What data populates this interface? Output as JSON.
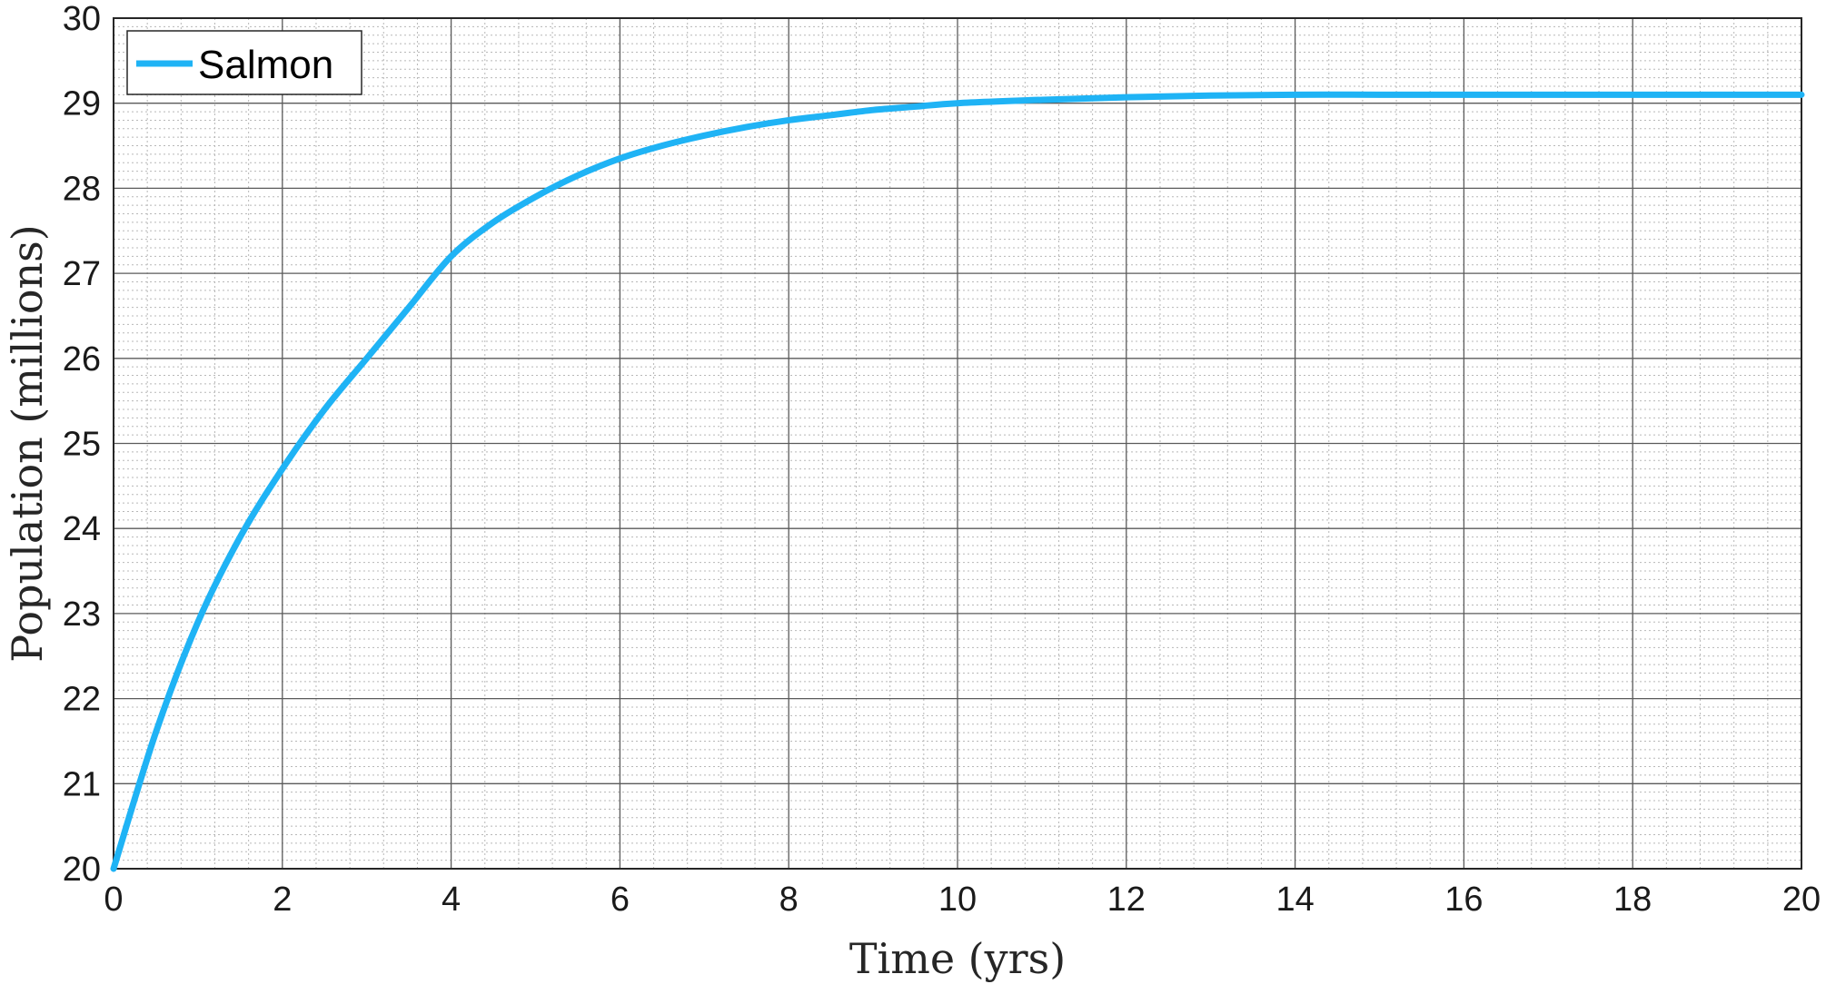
{
  "chart_data": {
    "type": "line",
    "xlabel": "Time (yrs)",
    "ylabel": "Population (millions)",
    "xlim": [
      0,
      20
    ],
    "ylim": [
      20,
      30
    ],
    "xticks": [
      "0",
      "2",
      "4",
      "6",
      "8",
      "10",
      "12",
      "14",
      "16",
      "18",
      "20"
    ],
    "yticks": [
      "20",
      "21",
      "22",
      "23",
      "24",
      "25",
      "26",
      "27",
      "28",
      "29",
      "30"
    ],
    "grid": true,
    "minor_grid": true,
    "legend_position": "top-left",
    "series": [
      {
        "name": "Salmon",
        "color": "#1fb3f5",
        "x": [
          0,
          0.5,
          1,
          1.5,
          2,
          2.5,
          3,
          3.5,
          4,
          4.5,
          5,
          5.5,
          6,
          6.5,
          7,
          7.5,
          8,
          8.5,
          9,
          9.5,
          10,
          11,
          12,
          13,
          14,
          15,
          16,
          17,
          18,
          19,
          20
        ],
        "y": [
          20.0,
          21.6,
          22.9,
          23.9,
          24.7,
          25.4,
          26.0,
          26.6,
          27.2,
          27.6,
          27.9,
          28.15,
          28.35,
          28.5,
          28.62,
          28.72,
          28.8,
          28.86,
          28.92,
          28.96,
          29.0,
          29.04,
          29.07,
          29.09,
          29.1,
          29.1,
          29.1,
          29.1,
          29.1,
          29.1,
          29.1
        ]
      }
    ]
  }
}
